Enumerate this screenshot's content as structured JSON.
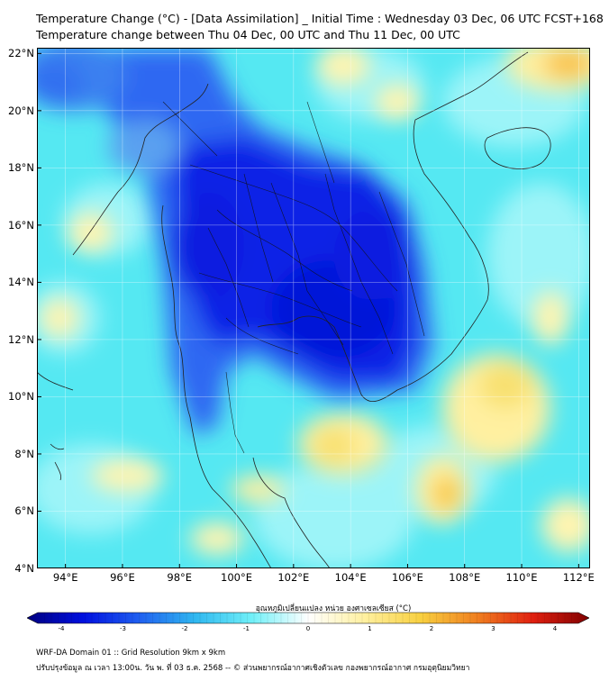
{
  "title": {
    "line1": "Temperature Change (°C) - [Data Assimilation] _ Initial Time : Wednesday 03 Dec, 06 UTC FCST+168",
    "line2": "Temperature change between Thu 04 Dec, 00 UTC and Thu 11 Dec, 00 UTC"
  },
  "map": {
    "lon_range": [
      93,
      112.4
    ],
    "lat_range": [
      4,
      22.2
    ],
    "lat_labels": [
      "22°N",
      "20°N",
      "18°N",
      "16°N",
      "14°N",
      "12°N",
      "10°N",
      "8°N",
      "6°N",
      "4°N"
    ],
    "lat_values": [
      22,
      20,
      18,
      16,
      14,
      12,
      10,
      8,
      6,
      4
    ],
    "lon_labels": [
      "94°E",
      "96°E",
      "98°E",
      "100°E",
      "102°E",
      "104°E",
      "106°E",
      "108°E",
      "110°E",
      "112°E"
    ],
    "lon_values": [
      94,
      96,
      98,
      100,
      102,
      104,
      106,
      108,
      110,
      112
    ],
    "background_color": "#55e8f2"
  },
  "colorbar": {
    "label": "อุณหภูมิเปลี่ยนแปลง หน่วย องศาเซลเซียส (°C)",
    "ticks": [
      "-4",
      "-3",
      "-2",
      "-1",
      "0",
      "1",
      "2",
      "3",
      "4"
    ],
    "range": [
      -4,
      4
    ],
    "colors": [
      "#000080",
      "#0010e0",
      "#2060f0",
      "#30b8f0",
      "#70f0f8",
      "#ffffff",
      "#fff0a0",
      "#f8d040",
      "#f08020",
      "#e02010",
      "#800000"
    ]
  },
  "footer": {
    "line1": "WRF-DA Domain 01 :: Grid Resolution 9km x 9km",
    "line2": "ปรับปรุงข้อมูล ณ เวลา 13:00น. วัน พ. ที่ 03 ธ.ค. 2568 -- © ส่วนพยากรณ์อากาศเชิงตัวเลข กองพยากรณ์อากาศ กรมอุตุนิยมวิทยา"
  }
}
